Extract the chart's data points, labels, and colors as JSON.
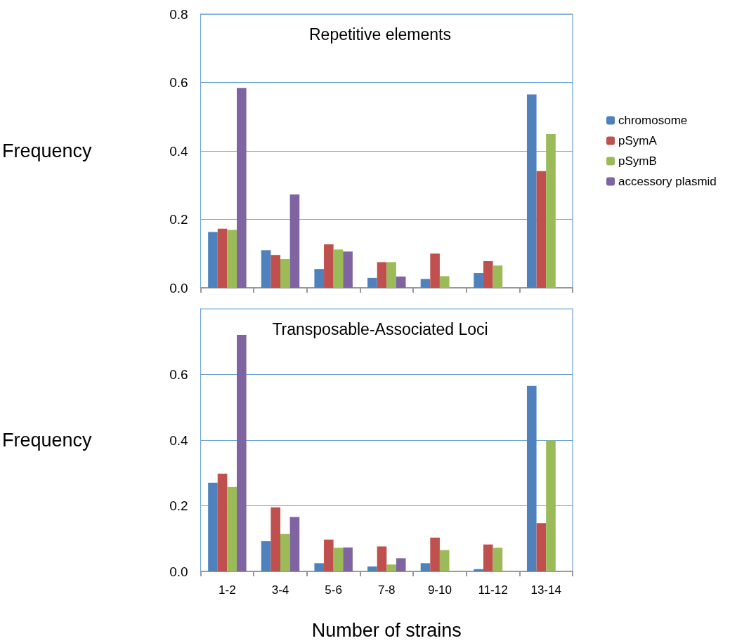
{
  "chart_data": [
    {
      "type": "bar",
      "title": "Repetitive elements",
      "ylabel": "Frequency",
      "categories": [
        null,
        null,
        null,
        null,
        null,
        null,
        null
      ],
      "series": [
        {
          "name": "chromosome",
          "color": "#4f81bd",
          "values": [
            0.163,
            0.11,
            0.055,
            0.029,
            0.026,
            0.043,
            0.565
          ]
        },
        {
          "name": "pSymA",
          "color": "#c0504d",
          "values": [
            0.173,
            0.096,
            0.127,
            0.075,
            0.1,
            0.078,
            0.341
          ]
        },
        {
          "name": "pSymB",
          "color": "#9bbb59",
          "values": [
            0.169,
            0.084,
            0.112,
            0.075,
            0.034,
            0.065,
            0.449
          ]
        },
        {
          "name": "accessory plasmid",
          "color": "#8064a2",
          "values": [
            0.584,
            0.273,
            0.106,
            0.033,
            null,
            null,
            null
          ]
        }
      ],
      "ylim": [
        0,
        0.8
      ],
      "yticks": [
        {
          "value": 0,
          "label": "0.0"
        },
        0.2,
        0.4,
        0.6,
        0.8
      ],
      "grid": "y",
      "legend": "right",
      "tick_labels": "y"
    },
    {
      "type": "bar",
      "title": "Transposable-Associated Loci",
      "ylabel": "Frequency",
      "xlabel": "Number of strains",
      "categories": [
        "1-2",
        "3-4",
        "5-6",
        "7-8",
        "9-10",
        "11-12",
        "13-14"
      ],
      "series": [
        {
          "color": "#4f81bd",
          "values": [
            0.27,
            0.092,
            0.025,
            0.015,
            0.025,
            0.007,
            0.565
          ]
        },
        {
          "color": "#c0504d",
          "values": [
            0.298,
            0.195,
            0.097,
            0.076,
            0.103,
            0.082,
            0.147
          ]
        },
        {
          "color": "#9bbb59",
          "values": [
            0.257,
            0.114,
            0.072,
            0.021,
            0.065,
            0.072,
            0.399
          ]
        },
        {
          "color": "#8064a2",
          "values": [
            0.721,
            0.166,
            0.073,
            0.04,
            null,
            null,
            null
          ]
        }
      ],
      "ylim": [
        0,
        0.8
      ],
      "yticks": [
        {
          "value": 0,
          "label": "0.0"
        },
        0.2,
        0.4,
        0.6
      ],
      "grid": "y",
      "legend": false
    }
  ]
}
